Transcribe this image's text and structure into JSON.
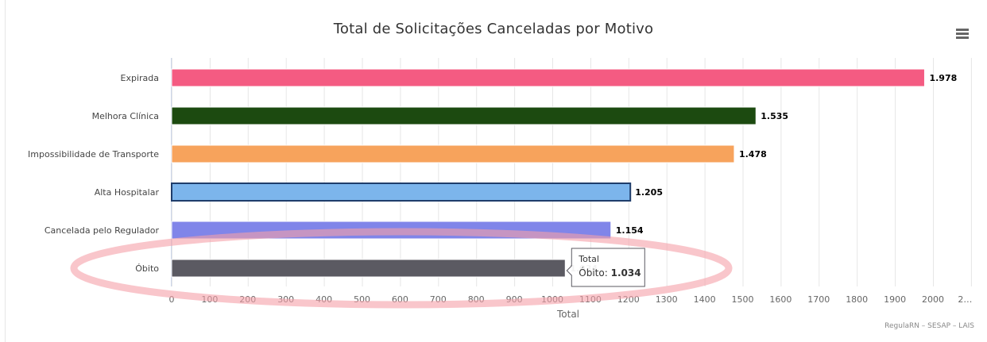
{
  "chart_data": {
    "type": "bar",
    "orientation": "horizontal",
    "title": "Total de Solicitações Canceladas por Motivo",
    "categories": [
      "Expirada",
      "Melhora Clínica",
      "Impossibilidade de Transporte",
      "Alta Hospitalar",
      "Cancelada pelo Regulador",
      "Óbito"
    ],
    "values": [
      1978,
      1535,
      1478,
      1205,
      1154,
      1034
    ],
    "value_labels": [
      "1.978",
      "1.535",
      "1.478",
      "1.205",
      "1.154",
      "1.034"
    ],
    "colors": [
      "#f45b82",
      "#1c4a10",
      "#f7a35c",
      "#7cb5ec",
      "#8085e9",
      "#5b5a62"
    ],
    "highlighted_index": 3,
    "x_ticks": [
      0,
      100,
      200,
      300,
      400,
      500,
      600,
      700,
      800,
      900,
      1000,
      1100,
      1200,
      1300,
      1400,
      1500,
      1600,
      1700,
      1800,
      1900,
      2000
    ],
    "x_last_tick_label": "2…",
    "xlabel": "Total",
    "xlim": [
      0,
      2100
    ],
    "grid": true,
    "tooltip": {
      "series": "Total",
      "label": "Óbito: ",
      "value": "1.034",
      "category_index": 5
    },
    "annotation": {
      "shape": "ellipse",
      "color": "#f5a0a8",
      "around_category_index": 5
    }
  },
  "credits": "RegulaRN – SESAP – LAIS"
}
